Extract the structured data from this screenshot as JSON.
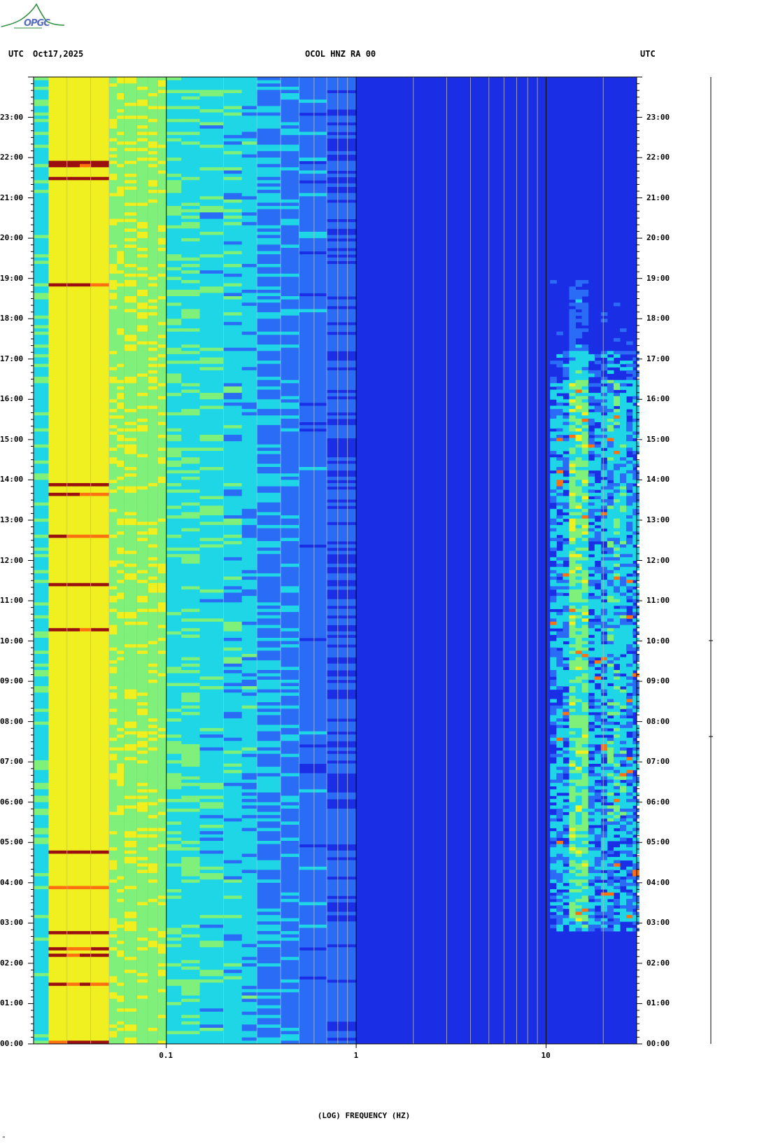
{
  "header": {
    "left_utc": "UTC",
    "date": "Oct17,2025",
    "station": "OCOL HNZ RA 00",
    "right_utc": "UTC"
  },
  "logo": {
    "text": "OPGC",
    "color": "#2f8f3f"
  },
  "chart_data": {
    "type": "heatmap",
    "title": "OCOL HNZ RA 00",
    "xlabel": "(LOG) FREQUENCY (HZ)",
    "ylabel": "",
    "x_scale": "log",
    "xlim": [
      0.02,
      30
    ],
    "x_ticks": [
      {
        "value": 0.1,
        "label": "0.1"
      },
      {
        "value": 1,
        "label": "1"
      },
      {
        "value": 10,
        "label": "10"
      }
    ],
    "ylim_hours": [
      0,
      24
    ],
    "y_ticks": [
      "00:00",
      "01:00",
      "02:00",
      "03:00",
      "04:00",
      "05:00",
      "06:00",
      "07:00",
      "08:00",
      "09:00",
      "10:00",
      "11:00",
      "12:00",
      "13:00",
      "14:00",
      "15:00",
      "16:00",
      "17:00",
      "18:00",
      "19:00",
      "20:00",
      "21:00",
      "22:00",
      "23:00"
    ],
    "colors": {
      "background_level": "#1a2ee6",
      "low": "#2a6cf5",
      "mid_low": "#1ed6e6",
      "mid": "#7ff07a",
      "high": "#f0f020",
      "very_high": "#ff7010",
      "peak": "#9a0f0f"
    },
    "notes": "Strong microseism energy below 0.1 Hz; cultural noise band 10-30 Hz mainly between 03:00 and 17:00 UTC"
  },
  "footer": {
    "mark": "\""
  }
}
